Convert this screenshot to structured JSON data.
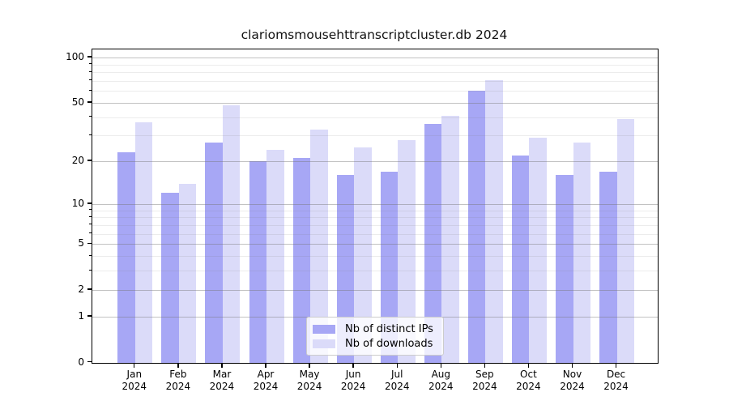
{
  "chart_data": {
    "type": "bar",
    "title": "clariomsmousehttranscriptcluster.db 2024",
    "categories": [
      {
        "month": "Jan",
        "year": "2024"
      },
      {
        "month": "Feb",
        "year": "2024"
      },
      {
        "month": "Mar",
        "year": "2024"
      },
      {
        "month": "Apr",
        "year": "2024"
      },
      {
        "month": "May",
        "year": "2024"
      },
      {
        "month": "Jun",
        "year": "2024"
      },
      {
        "month": "Jul",
        "year": "2024"
      },
      {
        "month": "Aug",
        "year": "2024"
      },
      {
        "month": "Sep",
        "year": "2024"
      },
      {
        "month": "Oct",
        "year": "2024"
      },
      {
        "month": "Nov",
        "year": "2024"
      },
      {
        "month": "Dec",
        "year": "2024"
      }
    ],
    "series": [
      {
        "name": "Nb of distinct IPs",
        "color": "#a7a7f5",
        "values": [
          23,
          12,
          27,
          20,
          21,
          16,
          17,
          36,
          60,
          22,
          16,
          17
        ]
      },
      {
        "name": "Nb of downloads",
        "color": "#dbdbf9",
        "values": [
          37,
          14,
          48,
          24,
          33,
          25,
          28,
          41,
          71,
          29,
          27,
          39
        ]
      }
    ],
    "y_ticks": [
      0,
      1,
      2,
      5,
      10,
      20,
      50,
      100
    ],
    "y_minor_ticks": [
      3,
      4,
      6,
      7,
      8,
      9,
      30,
      40,
      60,
      70,
      80,
      90
    ],
    "y_scale": "log1p",
    "ylim": [
      0,
      115
    ],
    "xlabel": "",
    "ylabel": "",
    "grid": true,
    "legend_position": "lower center"
  },
  "style_colors": {
    "background": "#ffffff",
    "spine": "#000000",
    "major_grid": "#c4c4c4",
    "minor_grid": "#ececec",
    "text": "#000000"
  }
}
